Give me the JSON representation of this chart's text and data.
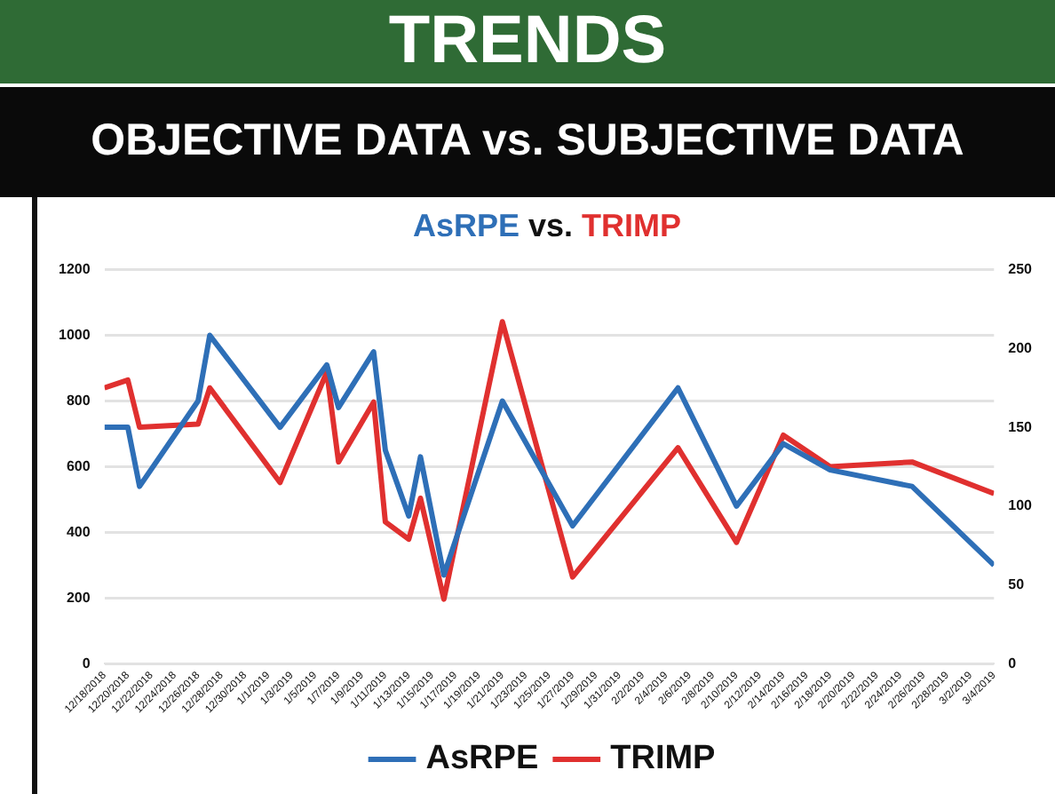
{
  "chart_data": {
    "type": "line",
    "title": "TRENDS",
    "subtitle": "OBJECTIVE DATA vs. SUBJECTIVE DATA",
    "annotations": [
      "AsRPE vs. TRIMP"
    ],
    "x": [
      "2018-12-18",
      "2018-12-20",
      "2018-12-21",
      "2018-12-26",
      "2018-12-27",
      "2019-01-02",
      "2019-01-06",
      "2019-01-07",
      "2019-01-10",
      "2019-01-11",
      "2019-01-13",
      "2019-01-14",
      "2019-01-16",
      "2019-01-21",
      "2019-01-27",
      "2019-02-05",
      "2019-02-10",
      "2019-02-14",
      "2019-02-18",
      "2019-02-25",
      "2019-03-04"
    ],
    "series": [
      {
        "name": "AsRPE",
        "color": "#2e6fb7",
        "values": [
          720,
          720,
          540,
          800,
          1000,
          720,
          910,
          780,
          950,
          650,
          450,
          630,
          270,
          800,
          420,
          840,
          480,
          670,
          590,
          540,
          300
        ]
      },
      {
        "name": "TRIMP",
        "color": "#e0302f",
        "axis": "y2",
        "values": [
          175,
          180,
          150,
          152,
          175,
          115,
          185,
          128,
          166,
          90,
          79,
          105,
          41,
          217,
          55,
          137,
          77,
          145,
          125,
          128,
          108
        ]
      }
    ],
    "xlim": [
      "2018-12-18",
      "2019-03-04"
    ],
    "xticks": [
      {
        "value": "2018-12-18",
        "label": "12/18/2018"
      },
      {
        "value": "2018-12-20",
        "label": "12/20/2018"
      },
      {
        "value": "2018-12-22",
        "label": "12/22/2018"
      },
      {
        "value": "2018-12-24",
        "label": "12/24/2018"
      },
      {
        "value": "2018-12-26",
        "label": "12/26/2018"
      },
      {
        "value": "2018-12-28",
        "label": "12/28/2018"
      },
      {
        "value": "2018-12-30",
        "label": "12/30/2018"
      },
      {
        "value": "2019-01-01",
        "label": "1/1/2019"
      },
      {
        "value": "2019-01-03",
        "label": "1/3/2019"
      },
      {
        "value": "2019-01-05",
        "label": "1/5/2019"
      },
      {
        "value": "2019-01-07",
        "label": "1/7/2019"
      },
      {
        "value": "2019-01-09",
        "label": "1/9/2019"
      },
      {
        "value": "2019-01-11",
        "label": "1/11/2019"
      },
      {
        "value": "2019-01-13",
        "label": "1/13/2019"
      },
      {
        "value": "2019-01-15",
        "label": "1/15/2019"
      },
      {
        "value": "2019-01-17",
        "label": "1/17/2019"
      },
      {
        "value": "2019-01-19",
        "label": "1/19/2019"
      },
      {
        "value": "2019-01-21",
        "label": "1/21/2019"
      },
      {
        "value": "2019-01-23",
        "label": "1/23/2019"
      },
      {
        "value": "2019-01-25",
        "label": "1/25/2019"
      },
      {
        "value": "2019-01-27",
        "label": "1/27/2019"
      },
      {
        "value": "2019-01-29",
        "label": "1/29/2019"
      },
      {
        "value": "2019-01-31",
        "label": "1/31/2019"
      },
      {
        "value": "2019-02-02",
        "label": "2/2/2019"
      },
      {
        "value": "2019-02-04",
        "label": "2/4/2019"
      },
      {
        "value": "2019-02-06",
        "label": "2/6/2019"
      },
      {
        "value": "2019-02-08",
        "label": "2/8/2019"
      },
      {
        "value": "2019-02-10",
        "label": "2/10/2019"
      },
      {
        "value": "2019-02-12",
        "label": "2/12/2019"
      },
      {
        "value": "2019-02-14",
        "label": "2/14/2019"
      },
      {
        "value": "2019-02-16",
        "label": "2/16/2019"
      },
      {
        "value": "2019-02-18",
        "label": "2/18/2019"
      },
      {
        "value": "2019-02-20",
        "label": "2/20/2019"
      },
      {
        "value": "2019-02-22",
        "label": "2/22/2019"
      },
      {
        "value": "2019-02-24",
        "label": "2/24/2019"
      },
      {
        "value": "2019-02-26",
        "label": "2/26/2019"
      },
      {
        "value": "2019-02-28",
        "label": "2/28/2019"
      },
      {
        "value": "2019-03-02",
        "label": "3/2/2019"
      },
      {
        "value": "2019-03-04",
        "label": "3/4/2019"
      }
    ],
    "ylim": [
      0,
      1200
    ],
    "yticks": [
      0,
      200,
      400,
      600,
      800,
      1000,
      1200
    ],
    "y2lim": [
      0,
      250
    ],
    "y2ticks": [
      0,
      50,
      100,
      150,
      200,
      250
    ],
    "grid": "y",
    "legend": "bottom",
    "marker": "none",
    "line_style": "solid"
  }
}
